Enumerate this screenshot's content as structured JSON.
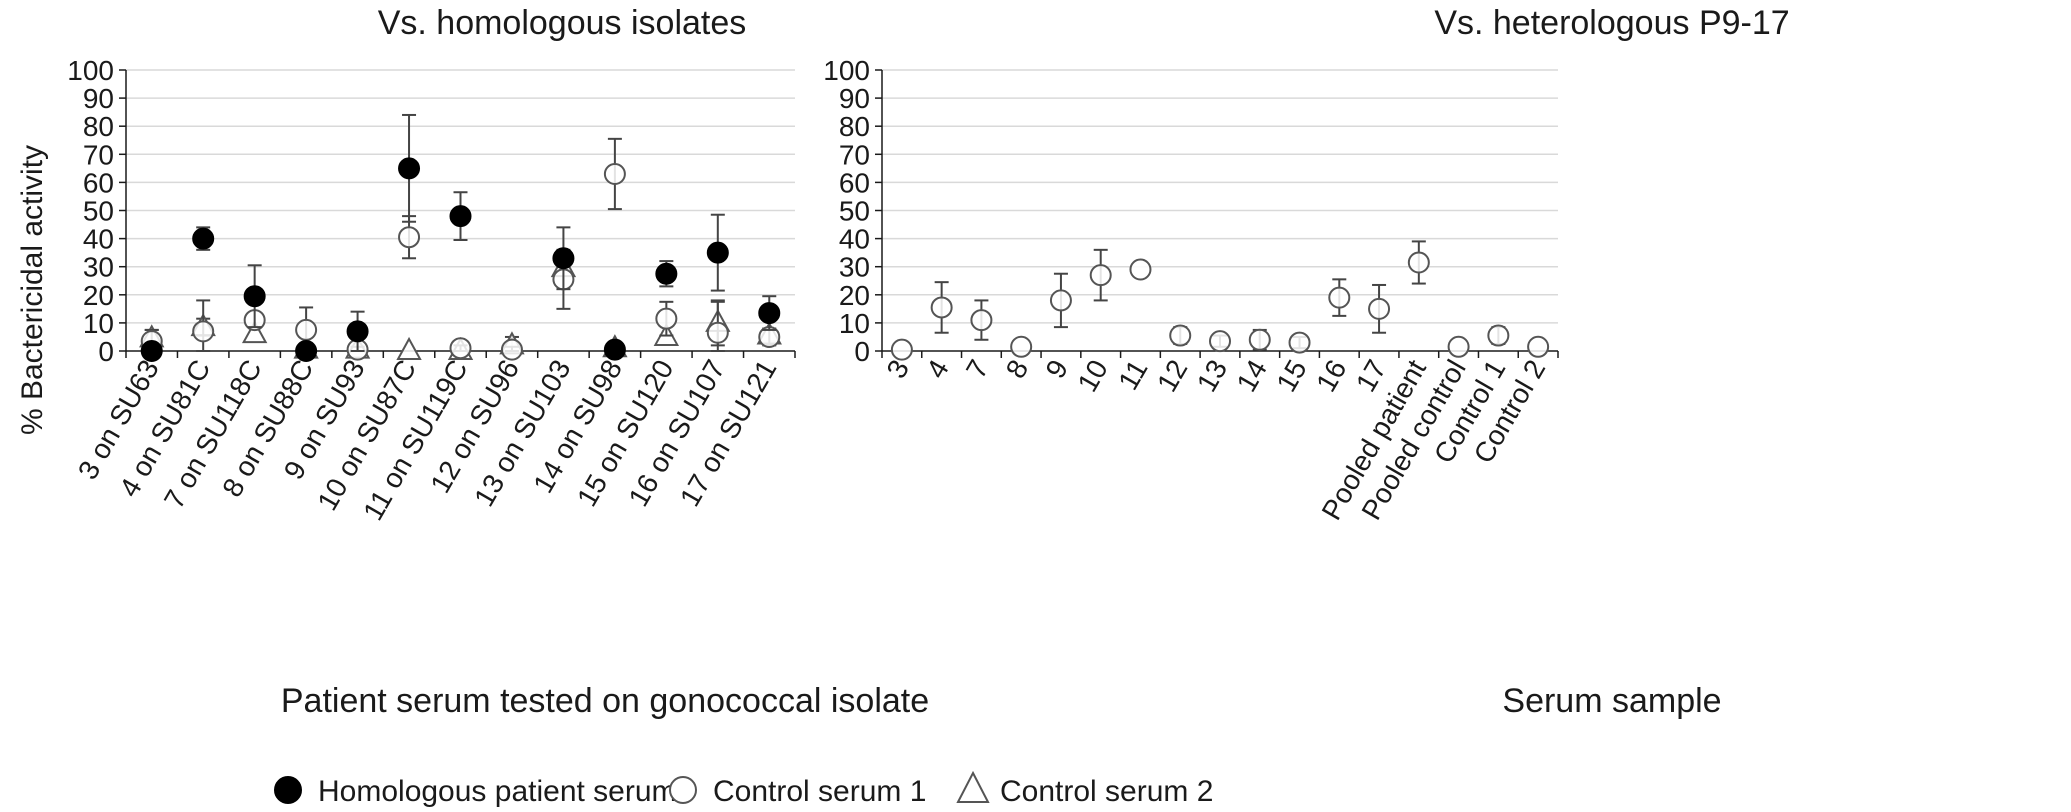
{
  "chart_data": [
    {
      "type": "scatter",
      "title": "Vs. homologous isolates",
      "xlabel": "Patient serum tested on gonococcal isolate",
      "ylabel": "% Bactericidal activity",
      "ylim": [
        0,
        100
      ],
      "yticks": [
        0,
        10,
        20,
        30,
        40,
        50,
        60,
        70,
        80,
        90,
        100
      ],
      "grid": true,
      "categories": [
        "3 on SU63",
        "4 on SU81C",
        "7 on SU118C",
        "8 on SU88C",
        "9 on SU93",
        "10 on SU87C",
        "11 on SU119C",
        "12 on SU96",
        "13 on SU103",
        "14 on SU98",
        "15 on SU120",
        "16 on SU107",
        "17 on SU121"
      ],
      "series": [
        {
          "name": "Homologous patient serum",
          "marker": "filled-circle",
          "values": [
            0,
            40,
            19.5,
            0,
            7,
            65,
            48,
            null,
            33,
            0.5,
            27.5,
            35,
            13.5
          ],
          "errors": [
            0,
            4,
            11,
            1,
            7,
            19,
            8.5,
            null,
            11,
            1,
            4.5,
            13.5,
            6
          ]
        },
        {
          "name": "Control serum 1",
          "marker": "open-circle",
          "values": [
            3.5,
            7,
            11,
            7.5,
            0.5,
            40.5,
            1,
            0.5,
            25.5,
            63,
            11.5,
            6.5,
            5
          ],
          "errors": [
            4,
            11,
            0,
            8,
            1,
            7.5,
            1,
            1,
            10.5,
            12.5,
            6,
            11,
            3
          ]
        },
        {
          "name": "Control serum 2",
          "marker": "open-triangle",
          "values": [
            4.5,
            8.5,
            6,
            0.5,
            0.5,
            0,
            0,
            2,
            29.5,
            1,
            5,
            10,
            5.5
          ],
          "errors": [
            3,
            3,
            0,
            1,
            1,
            0,
            0,
            3,
            0,
            1,
            0,
            8,
            2
          ]
        }
      ]
    },
    {
      "type": "scatter",
      "title": "Vs. heterologous P9-17",
      "xlabel": "Serum sample",
      "ylim": [
        0,
        100
      ],
      "yticks": [
        0,
        10,
        20,
        30,
        40,
        50,
        60,
        70,
        80,
        90,
        100
      ],
      "grid": true,
      "categories": [
        "3",
        "4",
        "7",
        "8",
        "9",
        "10",
        "11",
        "12",
        "13",
        "14",
        "15",
        "16",
        "17",
        "Pooled patient",
        "Pooled control",
        "Control 1",
        "Control 2"
      ],
      "series": [
        {
          "name": "Control serum 1",
          "marker": "open-circle",
          "values": [
            0.5,
            15.5,
            11,
            1.5,
            18,
            27,
            29,
            5.5,
            3.5,
            4,
            3,
            19,
            15,
            31.5,
            1.5,
            5.5,
            1.5
          ],
          "errors": [
            0,
            9,
            7,
            0,
            9.5,
            9,
            0,
            3,
            2,
            3.5,
            2,
            6.5,
            8.5,
            7.5,
            0,
            3,
            0
          ]
        }
      ]
    }
  ],
  "legend": {
    "items": [
      {
        "label": "Homologous patient serum",
        "marker": "filled-circle"
      },
      {
        "label": "Control serum 1",
        "marker": "open-circle"
      },
      {
        "label": "Control serum 2",
        "marker": "open-triangle"
      }
    ]
  }
}
